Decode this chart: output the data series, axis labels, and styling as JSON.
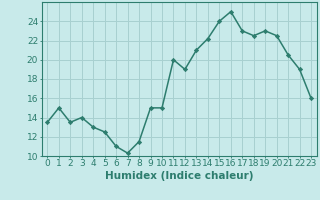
{
  "x": [
    0,
    1,
    2,
    3,
    4,
    5,
    6,
    7,
    8,
    9,
    10,
    11,
    12,
    13,
    14,
    15,
    16,
    17,
    18,
    19,
    20,
    21,
    22,
    23
  ],
  "y": [
    13.5,
    15.0,
    13.5,
    14.0,
    13.0,
    12.5,
    11.0,
    10.3,
    11.5,
    15.0,
    15.0,
    20.0,
    19.0,
    21.0,
    22.2,
    24.0,
    25.0,
    23.0,
    22.5,
    23.0,
    22.5,
    20.5,
    19.0,
    16.0
  ],
  "line_color": "#2d7d6e",
  "marker": "D",
  "marker_size": 2.2,
  "bg_color": "#c8eaea",
  "grid_color": "#a8d0d0",
  "xlabel": "Humidex (Indice chaleur)",
  "xlim": [
    -0.5,
    23.5
  ],
  "ylim": [
    10,
    26
  ],
  "yticks": [
    10,
    12,
    14,
    16,
    18,
    20,
    22,
    24
  ],
  "xticks": [
    0,
    1,
    2,
    3,
    4,
    5,
    6,
    7,
    8,
    9,
    10,
    11,
    12,
    13,
    14,
    15,
    16,
    17,
    18,
    19,
    20,
    21,
    22,
    23
  ],
  "tick_fontsize": 6.5,
  "xlabel_fontsize": 7.5,
  "linewidth": 1.1
}
